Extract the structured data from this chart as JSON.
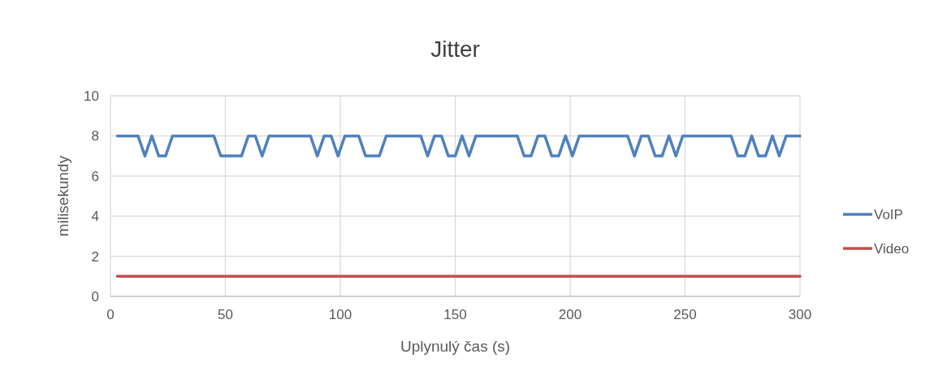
{
  "chart_data": {
    "type": "line",
    "title": "Jitter",
    "xlabel": "Uplynulý čas (s)",
    "ylabel": "milisekundy",
    "xlim": [
      0,
      300
    ],
    "xticks": [
      0,
      50,
      100,
      150,
      200,
      250,
      300
    ],
    "ylim": [
      0,
      10
    ],
    "yticks": [
      0,
      2,
      4,
      6,
      8,
      10
    ],
    "grid": true,
    "legend": "right",
    "marker": "none",
    "line_style": "solid",
    "x": [
      3,
      6,
      9,
      12,
      15,
      18,
      21,
      24,
      27,
      30,
      33,
      36,
      39,
      42,
      45,
      48,
      51,
      54,
      57,
      60,
      63,
      66,
      69,
      72,
      75,
      78,
      81,
      84,
      87,
      90,
      93,
      96,
      99,
      102,
      105,
      108,
      111,
      114,
      117,
      120,
      123,
      126,
      129,
      132,
      135,
      138,
      141,
      144,
      147,
      150,
      153,
      156,
      159,
      162,
      165,
      168,
      171,
      174,
      177,
      180,
      183,
      186,
      189,
      192,
      195,
      198,
      201,
      204,
      207,
      210,
      213,
      216,
      219,
      222,
      225,
      228,
      231,
      234,
      237,
      240,
      243,
      246,
      249,
      252,
      255,
      258,
      261,
      264,
      267,
      270,
      273,
      276,
      279,
      282,
      285,
      288,
      291,
      294,
      297,
      300
    ],
    "series": [
      {
        "name": "VoIP",
        "color": "#4f81bd",
        "values": [
          8,
          8,
          8,
          8,
          7,
          8,
          7,
          7,
          8,
          8,
          8,
          8,
          8,
          8,
          8,
          7,
          7,
          7,
          7,
          8,
          8,
          7,
          8,
          8,
          8,
          8,
          8,
          8,
          8,
          7,
          8,
          8,
          7,
          8,
          8,
          8,
          7,
          7,
          7,
          8,
          8,
          8,
          8,
          8,
          8,
          7,
          8,
          8,
          7,
          7,
          8,
          7,
          8,
          8,
          8,
          8,
          8,
          8,
          8,
          7,
          7,
          8,
          8,
          7,
          7,
          8,
          7,
          8,
          8,
          8,
          8,
          8,
          8,
          8,
          8,
          7,
          8,
          8,
          7,
          7,
          8,
          7,
          8,
          8,
          8,
          8,
          8,
          8,
          8,
          8,
          7,
          7,
          8,
          7,
          7,
          8,
          7,
          8,
          8,
          8
        ]
      },
      {
        "name": "Video",
        "color": "#c0504d",
        "values": [
          1,
          1,
          1,
          1,
          1,
          1,
          1,
          1,
          1,
          1,
          1,
          1,
          1,
          1,
          1,
          1,
          1,
          1,
          1,
          1,
          1,
          1,
          1,
          1,
          1,
          1,
          1,
          1,
          1,
          1,
          1,
          1,
          1,
          1,
          1,
          1,
          1,
          1,
          1,
          1,
          1,
          1,
          1,
          1,
          1,
          1,
          1,
          1,
          1,
          1,
          1,
          1,
          1,
          1,
          1,
          1,
          1,
          1,
          1,
          1,
          1,
          1,
          1,
          1,
          1,
          1,
          1,
          1,
          1,
          1,
          1,
          1,
          1,
          1,
          1,
          1,
          1,
          1,
          1,
          1,
          1,
          1,
          1,
          1,
          1,
          1,
          1,
          1,
          1,
          1,
          1,
          1,
          1,
          1,
          1,
          1,
          1,
          1,
          1,
          1
        ]
      }
    ]
  }
}
